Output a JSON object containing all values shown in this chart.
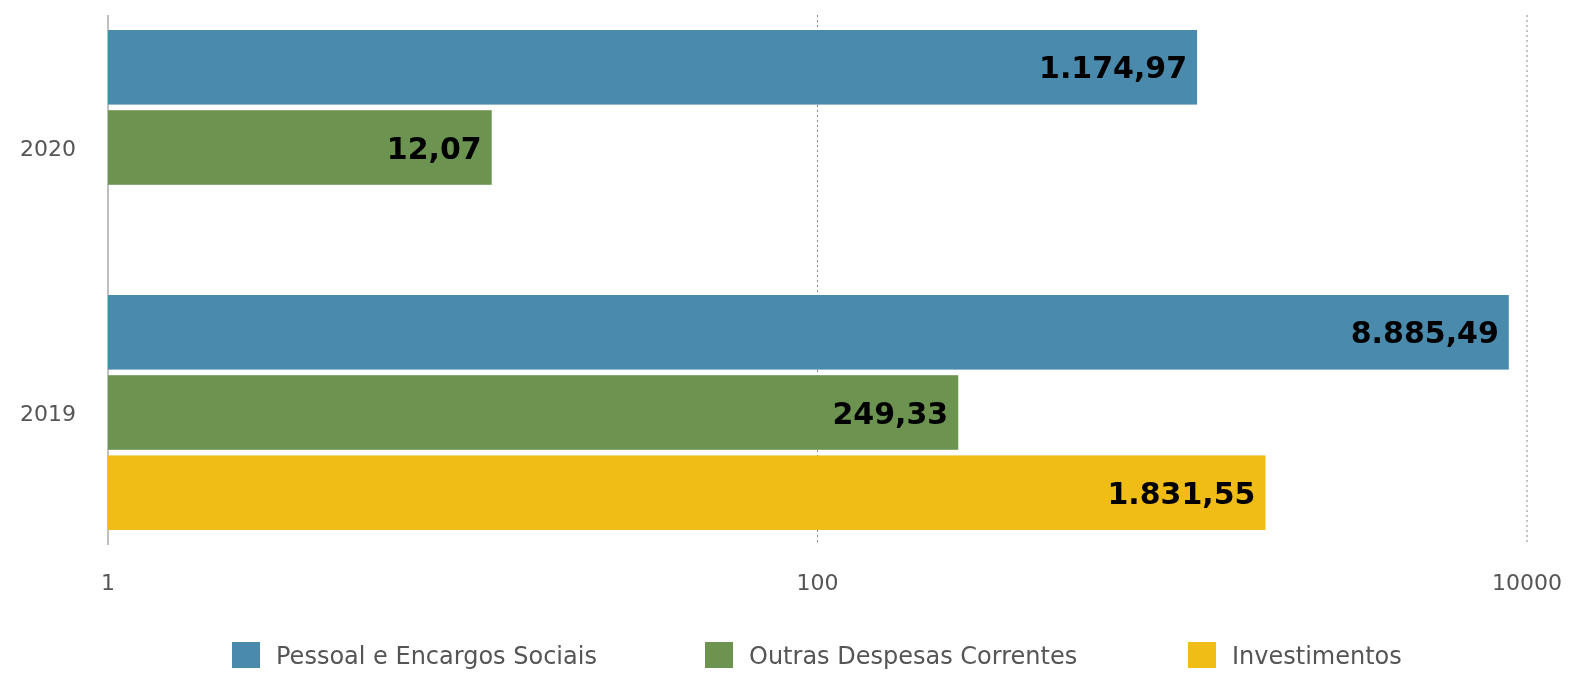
{
  "chart_data": {
    "type": "bar",
    "orientation": "horizontal",
    "log": "x",
    "categories": [
      "2020",
      "2019"
    ],
    "series": [
      {
        "name": "Pessoal e Encargos Sociais",
        "color": "#4a8aac",
        "values": [
          1174.97,
          8885.49
        ],
        "value_labels": [
          "1.174,97",
          "8.885,49"
        ]
      },
      {
        "name": "Outras Despesas Correntes",
        "color": "#6c9450",
        "values": [
          12.07,
          249.33
        ],
        "value_labels": [
          "12,07",
          "249,33"
        ]
      },
      {
        "name": "Investimentos",
        "color": "#f0bc16",
        "values": [
          null,
          1831.55
        ],
        "value_labels": [
          null,
          "1.831,55"
        ]
      }
    ],
    "xlim": [
      1,
      10000
    ],
    "xticks": [
      1,
      100,
      10000
    ],
    "grid": "x",
    "legend": "bottom"
  }
}
